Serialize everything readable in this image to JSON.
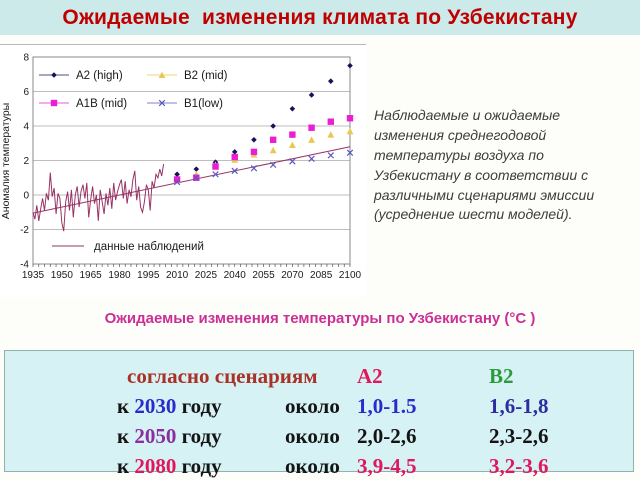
{
  "slide": {
    "title": "Ожидаемые  изменения климата по Узбекистану",
    "subtitle": "Ожидаемые изменения температуры по Узбекистану (°С )",
    "description": "Наблюдаемые и ожидаемые изменения среднегодовой температуры воздуха по Узбекистану   в соответствии с различными сценариями эмиссии (усреднение шести моделей)."
  },
  "colors": {
    "title": "#c00000",
    "band_bg": "#cdeaea",
    "subtitle": "#cc2e96",
    "table_bg": "#d6f2f5",
    "description_text": "#3d3d3d"
  },
  "chart_data": {
    "type": "scatter",
    "title": "",
    "xlabel": "",
    "ylabel": "Аномалия температуры",
    "xlim": [
      1935,
      2100
    ],
    "ylim": [
      -4,
      8
    ],
    "x_ticks": [
      1935,
      1950,
      1965,
      1980,
      1995,
      2010,
      2025,
      2040,
      2055,
      2070,
      2085,
      2100
    ],
    "y_ticks": [
      -4,
      -2,
      0,
      2,
      4,
      6,
      8
    ],
    "grid": "horizontal",
    "legend_position": "top-left",
    "scenario_years": [
      2010,
      2020,
      2030,
      2040,
      2050,
      2060,
      2070,
      2080,
      2090,
      2100
    ],
    "series": [
      {
        "name": "A2 (high)",
        "marker": "diamond",
        "color": "#14145a",
        "values": [
          1.2,
          1.5,
          1.9,
          2.5,
          3.2,
          4.0,
          5.0,
          5.8,
          6.6,
          7.5
        ]
      },
      {
        "name": "B2 (mid)",
        "marker": "triangle",
        "color": "#e9c850",
        "values": [
          0.85,
          1.2,
          1.75,
          2.05,
          2.35,
          2.6,
          2.9,
          3.2,
          3.5,
          3.7
        ]
      },
      {
        "name": "A1B (mid)",
        "marker": "square",
        "color": "#ea1ed2",
        "values": [
          0.9,
          1.0,
          1.65,
          2.2,
          2.5,
          3.2,
          3.5,
          3.9,
          4.25,
          4.45
        ]
      },
      {
        "name": "B1(low)",
        "marker": "x",
        "color": "#5858c0",
        "values": [
          0.75,
          1.0,
          1.2,
          1.4,
          1.55,
          1.75,
          1.95,
          2.1,
          2.3,
          2.45
        ]
      }
    ],
    "observed": {
      "name": "данные наблюдений",
      "color": "#993366",
      "start_year": 1935,
      "values": [
        -1.0,
        -1.4,
        -0.6,
        -1.5,
        -0.8,
        -0.2,
        -0.9,
        0.1,
        -0.3,
        1.3,
        -0.1,
        0.4,
        -1.1,
        0.1,
        -0.2,
        -1.6,
        -2.1,
        -0.4,
        0.2,
        -0.9,
        0.3,
        -1.3,
        0.0,
        0.5,
        -0.7,
        0.2,
        0.6,
        -0.2,
        0.7,
        -1.3,
        -0.3,
        0.5,
        -0.5,
        0.0,
        -1.5,
        0.3,
        -0.4,
        -1.1,
        0.1,
        -0.6,
        0.4,
        -0.8,
        0.7,
        -0.3,
        0.2,
        0.6,
        0.9,
        -0.2,
        0.8,
        -0.5,
        0.3,
        -0.1,
        0.9,
        1.4,
        -0.3,
        0.5,
        -0.7,
        -1.0,
        -0.4,
        0.6,
        0.3,
        -0.9,
        0.8,
        0.4,
        1.2,
        1.0,
        1.5,
        1.1,
        1.8
      ]
    },
    "trend": {
      "x": [
        1935,
        2100
      ],
      "y": [
        -1.05,
        2.8
      ],
      "color": "#993366"
    }
  },
  "table": {
    "header": {
      "scenario_label": "согласно сценариям",
      "scenario_color": "#a93226",
      "a2": "А2",
      "a2_color": "#e0175c",
      "b2": "В2",
      "b2_color": "#2e9b3c"
    },
    "rows": [
      {
        "k": "к ",
        "year": "2030",
        "year_color": "#2b2bcc",
        "godu": " году",
        "okolo": "около",
        "a2": "1,0-1.5",
        "a2_color": "#2b2bcc",
        "b2": "1,6-1,8",
        "b2_color": "#2d2da0"
      },
      {
        "k": "к ",
        "year": "2050",
        "year_color": "#8b2fa0",
        "godu": " году",
        "okolo": "около",
        "a2": "2,0-2,6",
        "a2_color": "#141414",
        "b2": "2,3-2,6",
        "b2_color": "#141414"
      },
      {
        "k": "к ",
        "year": "2080",
        "year_color": "#e0175c",
        "godu": " году",
        "okolo": "около",
        "a2": "3,9-4,5",
        "a2_color": "#e0175c",
        "b2": "3,2-3,6",
        "b2_color": "#e0175c"
      }
    ]
  }
}
